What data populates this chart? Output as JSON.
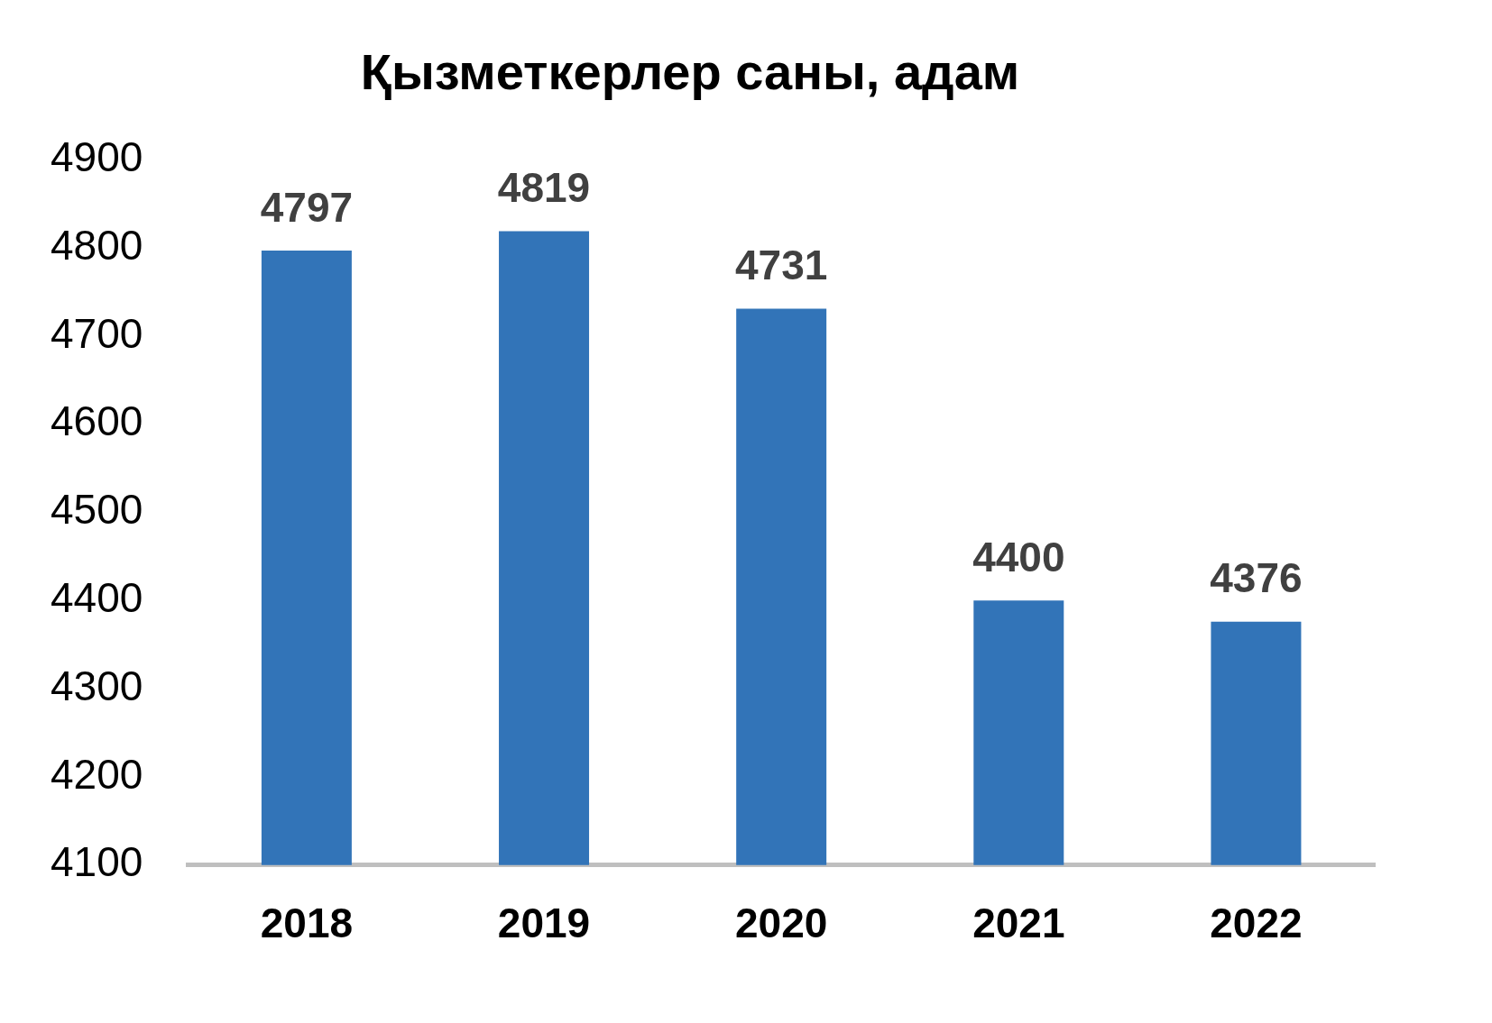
{
  "chart_data": {
    "type": "bar",
    "title": "Қызметкерлер саны, адам",
    "categories": [
      "2018",
      "2019",
      "2020",
      "2021",
      "2022"
    ],
    "values": [
      4797,
      4819,
      4731,
      4400,
      4376
    ],
    "color": "#3274b8",
    "ylim": [
      4100,
      4900
    ],
    "yticks": [
      4100,
      4200,
      4300,
      4400,
      4500,
      4600,
      4700,
      4800,
      4900
    ],
    "grid": false,
    "data_labels": true
  }
}
